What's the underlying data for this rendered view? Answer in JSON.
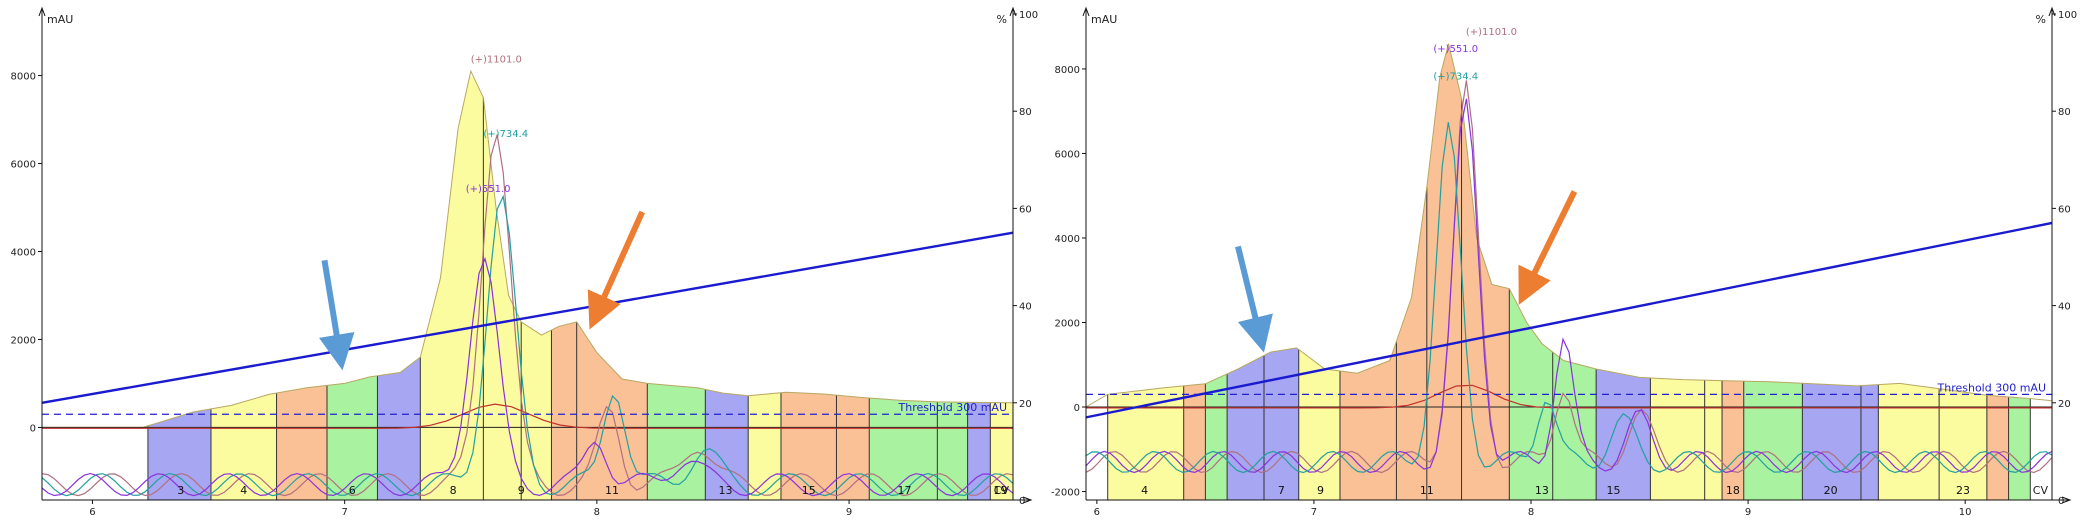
{
  "chart_data": [
    {
      "type": "area",
      "y_label": "mAU",
      "y2_label": "%",
      "x_label": "CV",
      "x_ticks": [
        6,
        7,
        8,
        9
      ],
      "y_ticks": [
        0,
        2000,
        4000,
        6000,
        8000
      ],
      "y2_ticks": [
        0,
        20,
        40,
        60,
        80,
        100
      ],
      "xlim": [
        5.8,
        9.65
      ],
      "ylim": [
        -1650,
        9400
      ],
      "y2lim": [
        0,
        100
      ],
      "threshold_label": "Threshold 300 mAU",
      "threshold_value": 300,
      "gradient": {
        "x": [
          5.8,
          9.65
        ],
        "y": [
          20,
          55
        ]
      },
      "fraction_edges": [
        6.22,
        6.47,
        6.73,
        6.93,
        7.13,
        7.3,
        7.55,
        7.7,
        7.82,
        7.92,
        8.2,
        8.43,
        8.6,
        8.73,
        8.95,
        9.08,
        9.35,
        9.47,
        9.56,
        9.65
      ],
      "fraction_colors": [
        "#a6a6f2",
        "#fbfba0",
        "#f9c195",
        "#a9f2a0",
        "#a6a6f2",
        "#fbfba0",
        "#fbfba0",
        "#fbfba0",
        "#f9c195",
        "#f9c195",
        "#a9f2a0",
        "#a6a6f2",
        "#fbfba0",
        "#f9c195",
        "#f9c195",
        "#a9f2a0",
        "#a9f2a0",
        "#a6a6f2",
        "#fbfba0"
      ],
      "fraction_labels": [
        {
          "x": 6.35,
          "text": "3"
        },
        {
          "x": 6.6,
          "text": "4"
        },
        {
          "x": 7.03,
          "text": "6"
        },
        {
          "x": 7.43,
          "text": "8"
        },
        {
          "x": 7.7,
          "text": "9"
        },
        {
          "x": 8.06,
          "text": "11"
        },
        {
          "x": 8.51,
          "text": "13"
        },
        {
          "x": 8.84,
          "text": "15"
        },
        {
          "x": 9.22,
          "text": "17"
        },
        {
          "x": 9.6,
          "text": "19"
        }
      ],
      "uv_trace": {
        "x": [
          5.8,
          6.2,
          6.4,
          6.55,
          6.7,
          6.85,
          7.0,
          7.1,
          7.22,
          7.3,
          7.38,
          7.45,
          7.5,
          7.55,
          7.6,
          7.65,
          7.7,
          7.78,
          7.85,
          7.92,
          8.0,
          8.1,
          8.2,
          8.3,
          8.4,
          8.5,
          8.6,
          8.75,
          8.9,
          9.05,
          9.2,
          9.35,
          9.5,
          9.65
        ],
        "y": [
          0,
          0,
          350,
          500,
          750,
          900,
          1000,
          1150,
          1250,
          1600,
          3400,
          6800,
          8100,
          7500,
          5000,
          3000,
          2400,
          2100,
          2300,
          2400,
          1700,
          1100,
          1000,
          950,
          900,
          780,
          720,
          800,
          760,
          680,
          620,
          580,
          570,
          560
        ]
      },
      "ms_traces": [
        {
          "label": "(+)1101.0",
          "color": "#b07080",
          "peak_x": 7.6,
          "peak_y": 8200
        },
        {
          "label": "(+)734.4",
          "color": "#22a0a0",
          "peak_x": 7.62,
          "peak_y": 6500
        },
        {
          "label": "(+)551.0",
          "color": "#8833dd",
          "peak_x": 7.55,
          "peak_y": 5200
        }
      ],
      "annotations": [
        {
          "label": "(+)1101.0",
          "x": 7.5,
          "y": 8300
        },
        {
          "label": "(+)734.4",
          "x": 7.55,
          "y": 6600
        },
        {
          "label": "(+)551.0",
          "x": 7.48,
          "y": 5350
        }
      ],
      "arrows": [
        {
          "color": "#5b9bd5",
          "from": [
            6.92,
            3800
          ],
          "to": [
            6.98,
            1700
          ]
        },
        {
          "color": "#ed7d31",
          "from": [
            8.18,
            4900
          ],
          "to": [
            8.0,
            2600
          ]
        }
      ]
    },
    {
      "type": "area",
      "y_label": "mAU",
      "y2_label": "%",
      "x_label": "CV",
      "x_ticks": [
        6,
        7,
        8,
        9,
        10
      ],
      "y_ticks": [
        -2000,
        0,
        2000,
        4000,
        6000,
        8000
      ],
      "y2_ticks": [
        0,
        20,
        40,
        60,
        80,
        100
      ],
      "xlim": [
        5.95,
        10.4
      ],
      "ylim": [
        -2200,
        9300
      ],
      "y2lim": [
        0,
        100
      ],
      "threshold_label": "Threshold 300 mAU",
      "threshold_value": 300,
      "gradient": {
        "x": [
          5.95,
          10.4
        ],
        "y": [
          17,
          57
        ]
      },
      "fraction_edges": [
        6.05,
        6.4,
        6.5,
        6.6,
        6.77,
        6.93,
        7.12,
        7.38,
        7.52,
        7.68,
        7.9,
        8.1,
        8.3,
        8.55,
        8.8,
        8.88,
        8.98,
        9.25,
        9.52,
        9.6,
        9.88,
        10.1,
        10.2,
        10.3
      ],
      "fraction_colors": [
        "#fbfba0",
        "#f9c195",
        "#a9f2a0",
        "#a6a6f2",
        "#a6a6f2",
        "#fbfba0",
        "#f9c195",
        "#f9c195",
        "#f9c195",
        "#f9c195",
        "#a9f2a0",
        "#a9f2a0",
        "#a6a6f2",
        "#fbfba0",
        "#fbfba0",
        "#f9c195",
        "#a9f2a0",
        "#a6a6f2",
        "#a6a6f2",
        "#fbfba0",
        "#fbfba0",
        "#f9c195",
        "#a9f2a0"
      ],
      "fraction_labels": [
        {
          "x": 6.22,
          "text": "4"
        },
        {
          "x": 6.85,
          "text": "7"
        },
        {
          "x": 7.03,
          "text": "9"
        },
        {
          "x": 7.52,
          "text": "11"
        },
        {
          "x": 8.05,
          "text": "13"
        },
        {
          "x": 8.38,
          "text": "15"
        },
        {
          "x": 8.93,
          "text": "18"
        },
        {
          "x": 9.38,
          "text": "20"
        },
        {
          "x": 9.99,
          "text": "23"
        }
      ],
      "uv_trace": {
        "x": [
          5.95,
          6.05,
          6.3,
          6.5,
          6.65,
          6.8,
          6.92,
          7.05,
          7.2,
          7.35,
          7.45,
          7.52,
          7.58,
          7.62,
          7.68,
          7.75,
          7.82,
          7.9,
          7.98,
          8.05,
          8.15,
          8.3,
          8.5,
          8.7,
          8.9,
          9.1,
          9.3,
          9.5,
          9.7,
          9.9,
          10.1,
          10.3,
          10.4
        ],
        "y": [
          0,
          300,
          450,
          550,
          900,
          1300,
          1400,
          900,
          800,
          1100,
          2600,
          5200,
          7800,
          8600,
          7300,
          4000,
          2900,
          2800,
          2000,
          1500,
          1100,
          900,
          700,
          650,
          620,
          600,
          550,
          500,
          560,
          420,
          280,
          200,
          150
        ]
      },
      "ms_traces": [
        {
          "label": "(+)1101.0",
          "color": "#b07080",
          "peak_x": 7.7,
          "peak_y": 8800
        },
        {
          "label": "(+)551.0",
          "color": "#8833dd",
          "peak_x": 7.7,
          "peak_y": 8400
        },
        {
          "label": "(+)734.4",
          "color": "#22a0a0",
          "peak_x": 7.62,
          "peak_y": 7800
        }
      ],
      "annotations": [
        {
          "label": "(+)1101.0",
          "x": 7.7,
          "y": 8800
        },
        {
          "label": "(+)551.0",
          "x": 7.55,
          "y": 8400
        },
        {
          "label": "(+)734.4",
          "x": 7.55,
          "y": 7750
        }
      ],
      "arrows": [
        {
          "color": "#5b9bd5",
          "from": [
            6.65,
            3800
          ],
          "to": [
            6.75,
            1700
          ]
        },
        {
          "color": "#ed7d31",
          "from": [
            8.2,
            5100
          ],
          "to": [
            7.98,
            2800
          ]
        }
      ]
    }
  ]
}
